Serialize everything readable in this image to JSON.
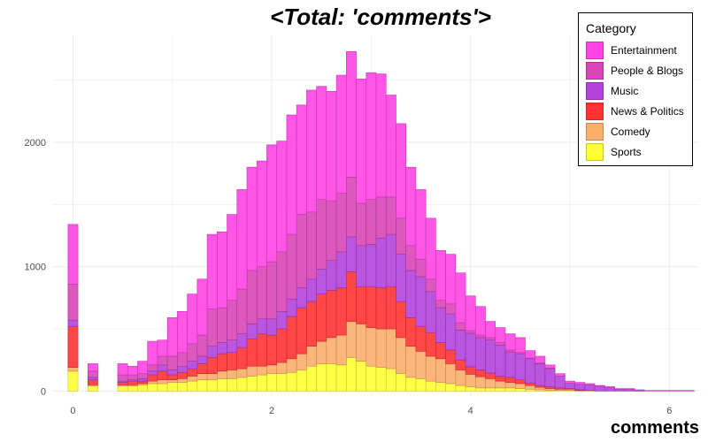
{
  "chart_data": {
    "type": "bar",
    "title": "<Total: 'comments'>",
    "xlabel": "comments",
    "ylabel": "",
    "stacked": true,
    "xlim": [
      -0.2,
      6.3
    ],
    "ylim": [
      -40,
      2860
    ],
    "x_ticks": [
      0,
      2,
      4,
      6
    ],
    "y_ticks": [
      0,
      1000,
      2000
    ],
    "grid": true,
    "legend_title": "Category",
    "legend_position": "top-right",
    "bin_width": 0.1,
    "x": [
      0.0,
      0.1,
      0.2,
      0.3,
      0.4,
      0.5,
      0.6,
      0.7,
      0.8,
      0.9,
      1.0,
      1.1,
      1.2,
      1.3,
      1.4,
      1.5,
      1.6,
      1.7,
      1.8,
      1.9,
      2.0,
      2.1,
      2.2,
      2.3,
      2.4,
      2.5,
      2.6,
      2.7,
      2.8,
      2.9,
      3.0,
      3.1,
      3.2,
      3.3,
      3.4,
      3.5,
      3.6,
      3.7,
      3.8,
      3.9,
      4.0,
      4.1,
      4.2,
      4.3,
      4.4,
      4.5,
      4.6,
      4.7,
      4.8,
      4.9,
      5.0,
      5.1,
      5.2,
      5.3,
      5.4,
      5.5,
      5.6,
      5.7,
      5.8,
      5.9,
      6.0,
      6.1,
      6.2
    ],
    "series": [
      {
        "name": "Sports",
        "color": "#ffff33",
        "values": [
          160,
          0,
          40,
          0,
          0,
          40,
          40,
          50,
          60,
          60,
          70,
          70,
          80,
          90,
          90,
          100,
          100,
          110,
          120,
          130,
          140,
          140,
          150,
          170,
          200,
          220,
          220,
          210,
          270,
          240,
          200,
          190,
          180,
          140,
          110,
          100,
          80,
          70,
          60,
          45,
          35,
          25,
          25,
          25,
          25,
          20,
          15,
          10,
          5,
          5,
          5,
          0,
          0,
          0,
          0,
          0,
          0,
          0,
          0,
          0,
          0,
          0,
          0
        ]
      },
      {
        "name": "Comedy",
        "color": "#fdae6b",
        "values": [
          30,
          0,
          10,
          0,
          0,
          10,
          10,
          10,
          20,
          30,
          20,
          30,
          40,
          50,
          50,
          60,
          70,
          70,
          80,
          70,
          70,
          90,
          110,
          130,
          160,
          180,
          210,
          240,
          290,
          300,
          310,
          310,
          320,
          290,
          250,
          220,
          200,
          190,
          160,
          125,
          100,
          90,
          75,
          55,
          45,
          40,
          30,
          20,
          15,
          10,
          10,
          5,
          5,
          0,
          0,
          0,
          0,
          0,
          0,
          0,
          0,
          0,
          0
        ]
      },
      {
        "name": "News & Politics",
        "color": "#ff3333",
        "values": [
          330,
          0,
          40,
          0,
          0,
          20,
          30,
          20,
          50,
          70,
          40,
          50,
          60,
          80,
          130,
          140,
          140,
          170,
          220,
          260,
          240,
          270,
          340,
          370,
          360,
          380,
          380,
          380,
          400,
          300,
          330,
          330,
          340,
          290,
          230,
          200,
          190,
          130,
          110,
          80,
          60,
          55,
          45,
          40,
          40,
          30,
          20,
          15,
          15,
          10,
          5,
          5,
          0,
          0,
          0,
          0,
          0,
          0,
          0,
          0,
          0,
          0,
          0
        ]
      },
      {
        "name": "Music",
        "color": "#b243dc",
        "values": [
          50,
          0,
          20,
          0,
          0,
          10,
          10,
          20,
          30,
          50,
          40,
          50,
          60,
          60,
          90,
          90,
          100,
          110,
          120,
          120,
          130,
          140,
          140,
          160,
          180,
          200,
          240,
          290,
          280,
          330,
          340,
          400,
          420,
          380,
          380,
          400,
          330,
          280,
          290,
          240,
          270,
          260,
          265,
          250,
          205,
          210,
          195,
          175,
          145,
          95,
          45,
          45,
          45,
          40,
          30,
          15,
          15,
          5,
          0,
          0,
          0,
          0,
          0
        ]
      },
      {
        "name": "People & Blogs",
        "color": "#d846b8",
        "values": [
          290,
          0,
          50,
          0,
          0,
          50,
          40,
          40,
          50,
          70,
          110,
          110,
          140,
          170,
          300,
          280,
          320,
          360,
          430,
          420,
          460,
          480,
          520,
          590,
          540,
          560,
          480,
          470,
          480,
          340,
          360,
          330,
          300,
          290,
          200,
          140,
          100,
          60,
          80,
          60,
          20,
          20,
          20,
          20,
          15,
          10,
          5,
          5,
          5,
          0,
          0,
          0,
          0,
          0,
          0,
          0,
          0,
          0,
          0,
          0,
          0,
          0,
          0
        ]
      },
      {
        "name": "Entertainment",
        "color": "#ff44e6",
        "values": [
          480,
          0,
          60,
          0,
          0,
          90,
          70,
          100,
          190,
          130,
          310,
          330,
          400,
          450,
          600,
          610,
          690,
          800,
          830,
          850,
          940,
          890,
          960,
          880,
          980,
          910,
          880,
          950,
          1010,
          1000,
          1020,
          990,
          820,
          760,
          630,
          560,
          490,
          400,
          400,
          400,
          280,
          230,
          130,
          120,
          130,
          120,
          60,
          55,
          25,
          20,
          15,
          15,
          10,
          5,
          5,
          5,
          5,
          5,
          5,
          5,
          5,
          5,
          5
        ]
      }
    ]
  }
}
